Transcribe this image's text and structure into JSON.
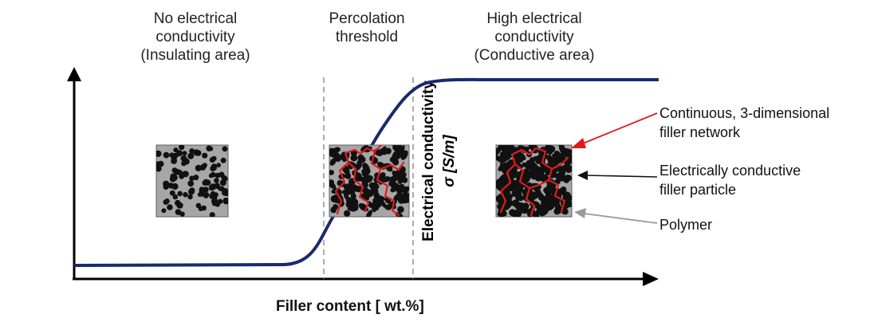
{
  "regions": {
    "insulating": {
      "line1": "No electrical",
      "line2": "conductivity",
      "line3": "(Insulating area)"
    },
    "percolation": {
      "line1": "Percolation",
      "line2": "threshold"
    },
    "conductive": {
      "line1": "High electrical",
      "line2": "conductivity",
      "line3": "(Conductive area)"
    }
  },
  "axes": {
    "ylabel_line1": "Electrical conductivity",
    "ylabel_line2": "σ [S/m]",
    "xlabel": "Filler content [ wt.%]"
  },
  "legend": {
    "network": {
      "line1": "Continuous, 3-dimensional",
      "line2": "filler network"
    },
    "particle": {
      "line1": "Electrically conductive",
      "line2": "filler particle"
    },
    "polymer": {
      "line1": "Polymer"
    }
  },
  "colors": {
    "curve": "#1a2a6c",
    "network": "#e21a1a",
    "particle": "#111111",
    "polymer_fill": "#a6a6a6",
    "polymer_arrow": "#9a9a9a",
    "threshold_line": "#808080"
  },
  "samples": [
    {
      "name": "insulating-sample",
      "particle_count": 110,
      "network_paths": 0
    },
    {
      "name": "percolation-sample",
      "particle_count": 150,
      "network_paths": 3
    },
    {
      "name": "conductive-sample",
      "particle_count": 230,
      "network_paths": 3
    }
  ]
}
